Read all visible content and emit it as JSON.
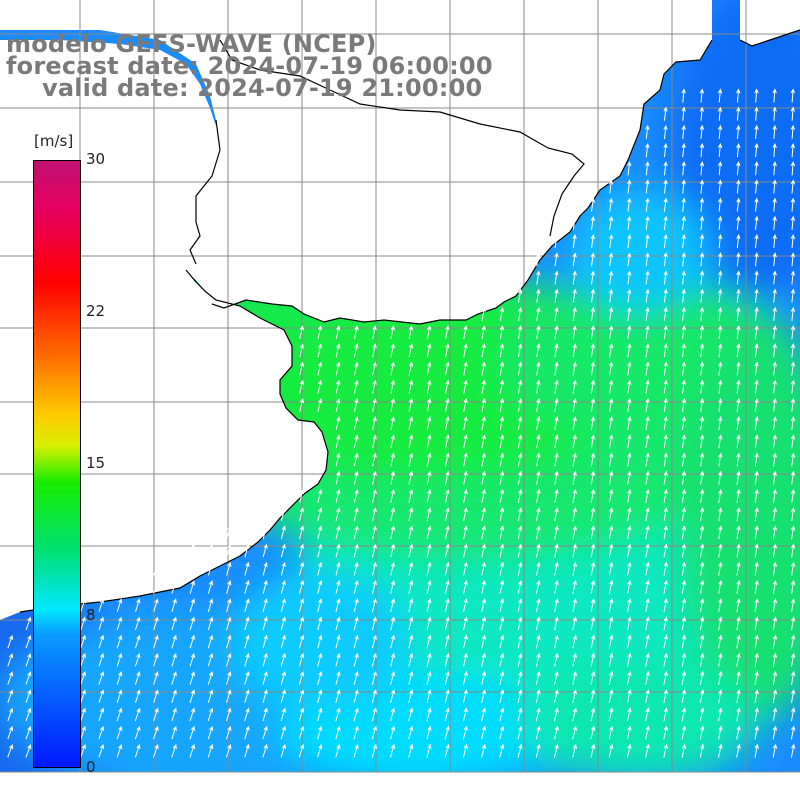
{
  "title": {
    "line1": "modelo GEFS-WAVE (NCEP)",
    "line2": "forecast date: 2024-07-19 06:00:00",
    "line3": "valid date: 2024-07-19 21:00:00"
  },
  "colorbar": {
    "units": "[m/s]",
    "ticks": [
      "30",
      "22",
      "15",
      "8",
      "0"
    ],
    "min": 0,
    "max": 30,
    "colors": {
      "low": "#0018ff",
      "mid_low": "#00e8ff",
      "mid": "#18ec00",
      "mid_high": "#ffcc00",
      "high": "#ff0000",
      "top": "#c01070"
    }
  },
  "map": {
    "grid_color": "#888888",
    "coast_color": "#000000",
    "land_color": "#ffffff",
    "arrow_color": "#ffffff",
    "vector_field": "wind arrows pointing north-northeast"
  }
}
